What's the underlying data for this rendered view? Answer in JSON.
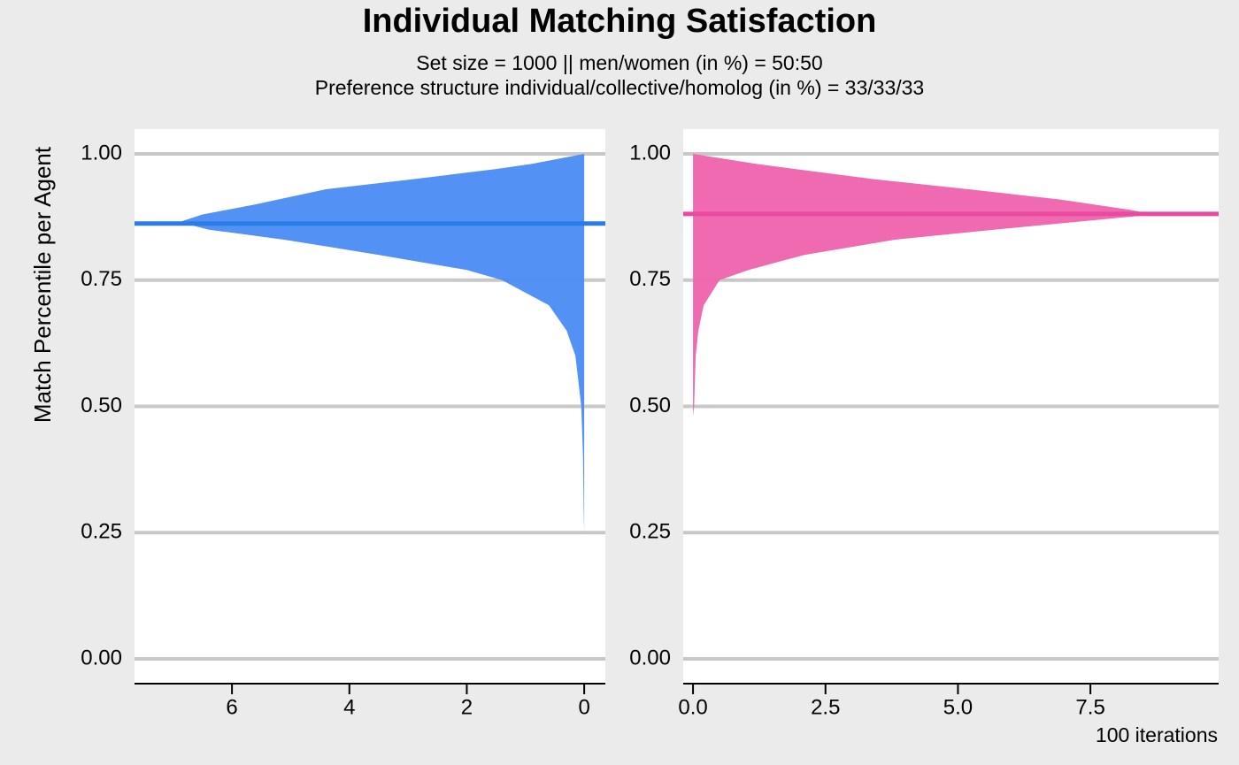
{
  "title": "Individual Matching Satisfaction",
  "subtitle": [
    "Set size = 1000 || men/women (in %) = 50:50",
    "Preference structure individual/collective/homolog (in %) = 33/33/33"
  ],
  "y_label": "Match Percentile per Agent",
  "caption": "100  iterations",
  "chart_data": [
    {
      "type": "density",
      "color": "#4b8bf4",
      "line_color": "#2a7de8",
      "y": [
        0.25,
        0.3,
        0.4,
        0.5,
        0.6,
        0.65,
        0.7,
        0.75,
        0.77,
        0.8,
        0.83,
        0.85,
        0.865,
        0.88,
        0.9,
        0.93,
        0.95,
        0.97,
        0.98,
        1.0
      ],
      "values": [
        0,
        0.01,
        0.02,
        0.05,
        0.15,
        0.3,
        0.6,
        1.4,
        2.0,
        3.5,
        5.1,
        6.4,
        6.9,
        6.5,
        5.6,
        4.4,
        2.9,
        1.5,
        0.9,
        0
      ],
      "mean": 0.862,
      "xlim": [
        7.66,
        -0.36
      ],
      "ylim": [
        -0.049,
        1.049
      ],
      "xticks": [
        6,
        4,
        2,
        0
      ],
      "yticks": [
        {
          "value": 0,
          "label": "0.00"
        },
        {
          "value": 0.25,
          "label": "0.25"
        },
        {
          "value": 0.5,
          "label": "0.50"
        },
        {
          "value": 0.75,
          "label": "0.75"
        },
        {
          "value": 1,
          "label": "1.00"
        }
      ],
      "grid": true
    },
    {
      "type": "density",
      "color": "#ee62ad",
      "line_color": "#e94aa0",
      "y": [
        0.48,
        0.5,
        0.6,
        0.65,
        0.7,
        0.75,
        0.77,
        0.8,
        0.83,
        0.85,
        0.87,
        0.88,
        0.89,
        0.91,
        0.93,
        0.95,
        0.98,
        1.0
      ],
      "values": [
        0,
        0.02,
        0.05,
        0.1,
        0.2,
        0.5,
        1.05,
        2.1,
        3.8,
        5.7,
        7.7,
        8.7,
        8.2,
        6.9,
        5.2,
        3.4,
        1.2,
        0
      ],
      "mean": 0.881,
      "xlim": [
        -0.185,
        9.92
      ],
      "ylim": [
        -0.049,
        1.049
      ],
      "xticks": [
        {
          "value": 0,
          "label": "0.0"
        },
        2.5,
        {
          "value": 5,
          "label": "5.0"
        },
        7.5
      ],
      "yticks": [
        {
          "value": 0,
          "label": "0.00"
        },
        {
          "value": 0.25,
          "label": "0.25"
        },
        {
          "value": 0.5,
          "label": "0.50"
        },
        {
          "value": 0.75,
          "label": "0.75"
        },
        {
          "value": 1,
          "label": "1.00"
        }
      ],
      "grid": true
    }
  ]
}
